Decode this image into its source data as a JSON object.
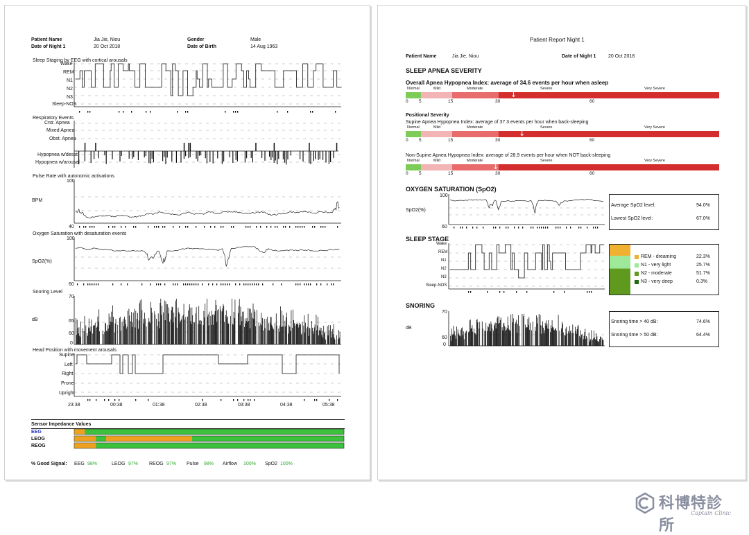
{
  "page1": {
    "patient_name_label": "Patient Name",
    "patient_name": "Jia Jie, Niou",
    "date_label": "Date of Night 1",
    "date": "20 Oct 2018",
    "gender_label": "Gender",
    "gender": "Male",
    "dob_label": "Date of Birth",
    "dob": "14 Aug 1963",
    "sleep_staging_title": "Sleep Staging by EEG with cortical arousals",
    "sleep_stage_labels": [
      "Wake",
      "REM",
      "N1",
      "N2",
      "N3",
      "Sleep-NOS"
    ],
    "resp_title": "Respiratory Events",
    "resp_labels": [
      "Cntr. Apnea",
      "Mixed Apnea",
      "Obst. Apnea",
      "Hypopnea w/desat",
      "Hypopnea w/arousal"
    ],
    "pulse_title": "Pulse Rate with autonomic activations",
    "pulse_unit": "BPM",
    "pulse_max": "100",
    "pulse_min": "40",
    "spo2_title": "Oxygen Saturation with desaturation events",
    "spo2_unit": "SpO2(%)",
    "spo2_max": "100",
    "spo2_min": "60",
    "snore_title": "Snoring Level",
    "snore_unit": "dB",
    "snore_ticks": [
      "70",
      "65",
      "60",
      "0"
    ],
    "head_title": "Head Position with movement arousals",
    "head_labels": [
      "Supine",
      "Left",
      "Right",
      "Prone",
      "Upright"
    ],
    "time_labels": [
      "23:38",
      "00:38",
      "01:38",
      "02:38",
      "03:38",
      "04:38",
      "05:38"
    ],
    "impedance_title": "Sensor Impedance Values",
    "impedance_rows": [
      {
        "label": "EEG",
        "color": "blue"
      },
      {
        "label": "LEOG",
        "color": "black"
      },
      {
        "label": "REOG",
        "color": "black"
      }
    ],
    "good_signal_label": "% Good Signal:",
    "good_signal": [
      {
        "name": "EEG",
        "value": "98%"
      },
      {
        "name": "LEOG",
        "value": "97%"
      },
      {
        "name": "REOG",
        "value": "97%"
      },
      {
        "name": "Pulse",
        "value": "98%"
      },
      {
        "name": "Airflow",
        "value": "100%"
      },
      {
        "name": "SpO2",
        "value": "100%"
      }
    ]
  },
  "page2": {
    "title": "Patient Report Night 1",
    "patient_name_label": "Patient Name",
    "patient_name": "Jia Jie, Niou",
    "date_label": "Date of Night 1",
    "date": "20 Oct 2018",
    "apnea_heading": "SLEEP APNEA SEVERITY",
    "overall_text": "Overall Apnea Hypopnea Index: average of 34.6 events per hour when asleep",
    "overall_ahi": 34.6,
    "positional_heading": "Positional Severity",
    "supine_text": "Supine Apnea Hypopnea Index: average of 37.3 events per hour when back-sleeping",
    "supine_ahi": 37.3,
    "nonsupine_text": "Non-Supine Apnea Hypopnea Index: average of 28.9 events per hour when NOT back-sleeping",
    "nonsupine_ahi": 28.9,
    "severity_labels": [
      "Normal",
      "Mild",
      "Moderate",
      "Severe",
      "Very Severe"
    ],
    "scale_ticks": [
      "0",
      "5",
      "15",
      "30",
      "60"
    ],
    "severity_colors": [
      "#7dcc57",
      "#f2b4b4",
      "#e86c6c",
      "#d42d2d"
    ],
    "spo2_heading": "OXYGEN SATURATION (SpO2)",
    "spo2_unit": "SpO2(%)",
    "spo2_max": "100",
    "spo2_min": "60",
    "avg_spo2_label": "Average SpO2 level:",
    "avg_spo2": "94.0%",
    "low_spo2_label": "Lowest SpO2 level:",
    "low_spo2": "67.0%",
    "sleep_heading": "SLEEP STAGE",
    "sleep_stage_labels": [
      "Wake",
      "REM",
      "N1",
      "N2",
      "N3",
      "Sleep-NOS"
    ],
    "stage_stats": [
      {
        "label": "REM - dreaming",
        "value": "22.3%",
        "color": "#f0b030"
      },
      {
        "label": "N1 - very light",
        "value": "25.7%",
        "color": "#9ee89a"
      },
      {
        "label": "N2 - moderate",
        "value": "51.7%",
        "color": "#5f9a1e"
      },
      {
        "label": "N3 - very deep",
        "value": "0.3%",
        "color": "#1f6a12"
      }
    ],
    "snoring_heading": "SNORING",
    "snore_unit": "dB",
    "snore_ticks": [
      "70",
      "60",
      "0"
    ],
    "snore40_label": "Snoring time > 40 dB:",
    "snore40": "74.6%",
    "snore50_label": "Snoring time > 50 dB:",
    "snore50": "64.4%"
  },
  "watermark": {
    "cn": "科博特診所",
    "en": "Captain Clinic"
  }
}
